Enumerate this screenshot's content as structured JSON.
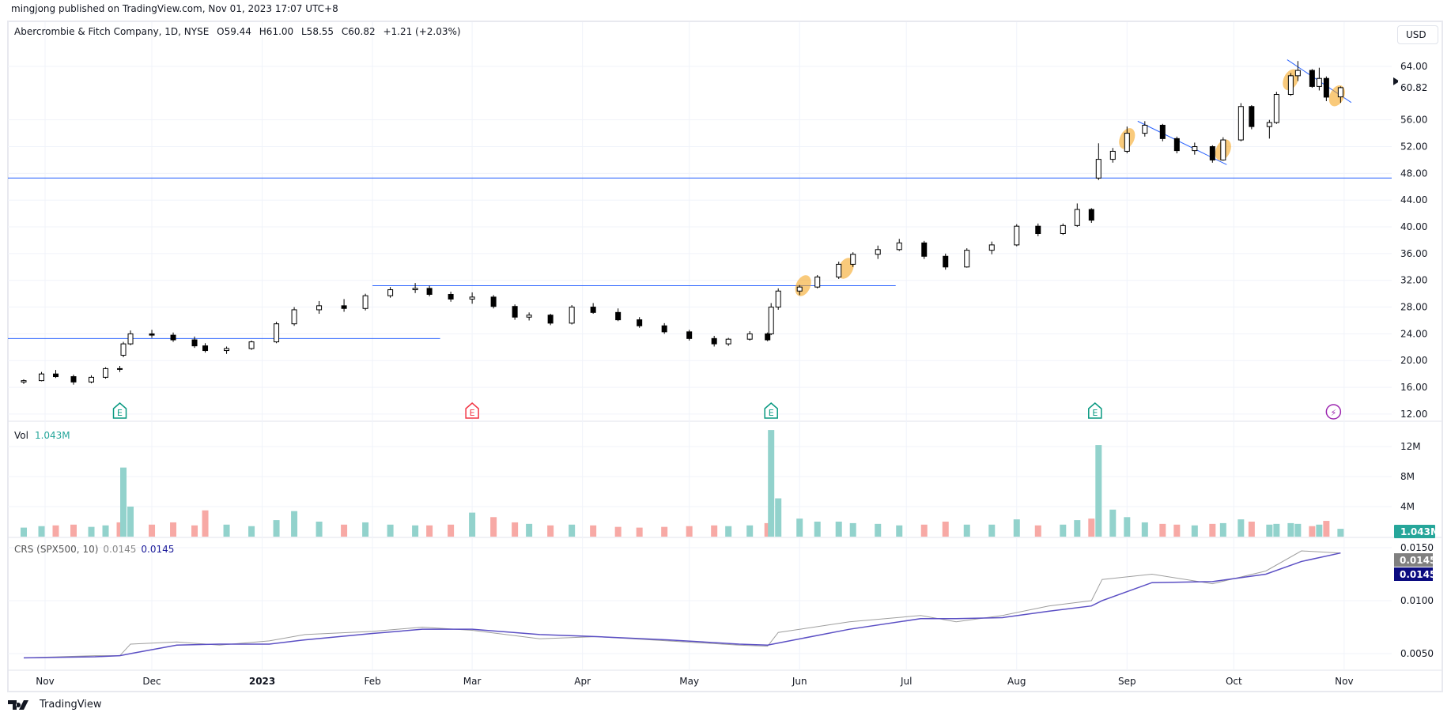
{
  "header": {
    "published": "mingjong published on TradingView.com, Nov 01, 2023 17:07 UTC+8"
  },
  "legend": {
    "symbol": "Abercrombie & Fitch Company, 1D, NYSE",
    "open": "O59.44",
    "high": "H61.00",
    "low": "L58.55",
    "close": "C60.82",
    "change": "+1.21 (+2.03%)"
  },
  "currency_button": "USD",
  "volume_legend": {
    "label": "Vol",
    "value": "1.043M"
  },
  "crs_legend": {
    "label": "CRS (SPX500, 10)",
    "value1": "0.0145",
    "value2": "0.0145"
  },
  "brand": "TradingView",
  "colors": {
    "up_volume": "#92d2cc",
    "down_volume": "#f7a9a5",
    "drawing": "#2962ff",
    "highlight": "#f5a623",
    "crs": "#9e9e9e",
    "crs_ma": "#5b4fc4",
    "last_volume_tag": "#26a69a",
    "crs_tag1": "#808080",
    "crs_tag2": "#0b0b80"
  },
  "chart_data": {
    "type": "candlestick",
    "title": "Abercrombie & Fitch Company, 1D, NYSE",
    "price_axis": {
      "ticks": [
        "12.00",
        "16.00",
        "20.00",
        "24.00",
        "28.00",
        "32.00",
        "36.00",
        "40.00",
        "44.00",
        "48.00",
        "52.00",
        "56.00",
        "64.00"
      ],
      "range": [
        12,
        66
      ],
      "last_price": "60.82"
    },
    "volume_axis": {
      "ticks": [
        "4M",
        "8M",
        "12M"
      ],
      "last_volume": "1.043M"
    },
    "crs_axis": {
      "ticks": [
        "0.0050",
        "0.0100",
        "0.0150"
      ],
      "last_values": [
        "0.0145",
        "0.0145"
      ]
    },
    "time_axis": [
      {
        "date": "2022-11-01",
        "label": "Nov"
      },
      {
        "date": "2022-12-01",
        "label": "Dec"
      },
      {
        "date": "2023-01-01",
        "label": "2023"
      },
      {
        "date": "2023-02-01",
        "label": "Feb"
      },
      {
        "date": "2023-03-01",
        "label": "Mar"
      },
      {
        "date": "2023-04-01",
        "label": "Apr"
      },
      {
        "date": "2023-05-01",
        "label": "May"
      },
      {
        "date": "2023-06-01",
        "label": "Jun"
      },
      {
        "date": "2023-07-01",
        "label": "Jul"
      },
      {
        "date": "2023-08-01",
        "label": "Aug"
      },
      {
        "date": "2023-09-01",
        "label": "Sep"
      },
      {
        "date": "2023-10-01",
        "label": "Oct"
      },
      {
        "date": "2023-11-01",
        "label": "Nov"
      }
    ],
    "candles_fields": [
      "date",
      "open",
      "high",
      "low",
      "close",
      "volume_M"
    ],
    "candles": [
      [
        "2022-10-26",
        16.8,
        17.2,
        16.5,
        17.0,
        1.2
      ],
      [
        "2022-10-31",
        17.0,
        18.3,
        16.9,
        18.0,
        1.4
      ],
      [
        "2022-11-04",
        18.0,
        18.6,
        17.4,
        17.6,
        1.5
      ],
      [
        "2022-11-09",
        17.6,
        17.9,
        16.4,
        16.8,
        1.6
      ],
      [
        "2022-11-14",
        16.8,
        17.8,
        16.6,
        17.5,
        1.3
      ],
      [
        "2022-11-18",
        17.5,
        19.0,
        17.3,
        18.8,
        1.5
      ],
      [
        "2022-11-22",
        18.8,
        19.2,
        18.3,
        18.7,
        1.9
      ],
      [
        "2022-11-23",
        20.8,
        22.8,
        20.5,
        22.5,
        9.2
      ],
      [
        "2022-11-25",
        22.5,
        24.5,
        22.3,
        24.0,
        4.0
      ],
      [
        "2022-12-01",
        24.0,
        24.6,
        23.4,
        23.8,
        1.6
      ],
      [
        "2022-12-07",
        23.8,
        24.2,
        22.8,
        23.1,
        1.9
      ],
      [
        "2022-12-13",
        23.1,
        23.6,
        21.9,
        22.2,
        1.5
      ],
      [
        "2022-12-16",
        22.2,
        22.6,
        21.2,
        21.5,
        3.5
      ],
      [
        "2022-12-22",
        21.5,
        22.1,
        21.0,
        21.8,
        1.6
      ],
      [
        "2022-12-29",
        21.8,
        23.0,
        21.6,
        22.8,
        1.4
      ],
      [
        "2023-01-05",
        22.8,
        25.8,
        22.6,
        25.5,
        2.2
      ],
      [
        "2023-01-10",
        25.5,
        28.0,
        25.2,
        27.6,
        3.4
      ],
      [
        "2023-01-17",
        27.6,
        28.9,
        27.0,
        28.2,
        2.0
      ],
      [
        "2023-01-24",
        28.2,
        29.2,
        27.3,
        27.8,
        1.6
      ],
      [
        "2023-01-30",
        27.8,
        30.0,
        27.5,
        29.7,
        1.9
      ],
      [
        "2023-02-06",
        29.7,
        31.0,
        29.4,
        30.6,
        1.6
      ],
      [
        "2023-02-13",
        30.6,
        31.6,
        30.1,
        30.8,
        1.5
      ],
      [
        "2023-02-17",
        30.8,
        31.2,
        29.6,
        29.9,
        1.5
      ],
      [
        "2023-02-23",
        29.9,
        30.3,
        28.8,
        29.2,
        1.6
      ],
      [
        "2023-03-01",
        29.2,
        30.2,
        28.5,
        29.5,
        3.2
      ],
      [
        "2023-03-07",
        29.5,
        29.8,
        27.8,
        28.1,
        2.6
      ],
      [
        "2023-03-13",
        28.1,
        28.4,
        26.1,
        26.5,
        1.9
      ],
      [
        "2023-03-17",
        26.5,
        27.2,
        26.0,
        26.8,
        1.7
      ],
      [
        "2023-03-23",
        26.8,
        27.0,
        25.3,
        25.6,
        1.5
      ],
      [
        "2023-03-29",
        25.6,
        28.3,
        25.4,
        28.0,
        1.6
      ],
      [
        "2023-04-04",
        28.0,
        28.6,
        27.0,
        27.2,
        1.5
      ],
      [
        "2023-04-11",
        27.2,
        27.8,
        25.9,
        26.1,
        1.3
      ],
      [
        "2023-04-17",
        26.1,
        26.5,
        24.9,
        25.2,
        1.2
      ],
      [
        "2023-04-24",
        25.2,
        25.6,
        24.0,
        24.3,
        1.3
      ],
      [
        "2023-05-01",
        24.3,
        24.6,
        23.0,
        23.3,
        1.4
      ],
      [
        "2023-05-08",
        23.3,
        23.7,
        22.1,
        22.5,
        1.5
      ],
      [
        "2023-05-12",
        22.5,
        23.4,
        22.2,
        23.2,
        1.4
      ],
      [
        "2023-05-18",
        23.2,
        24.4,
        23.0,
        24.0,
        1.5
      ],
      [
        "2023-05-23",
        24.0,
        24.2,
        22.9,
        23.1,
        1.8
      ],
      [
        "2023-05-24",
        24.0,
        28.6,
        23.8,
        28.0,
        14.2
      ],
      [
        "2023-05-26",
        28.0,
        30.8,
        27.6,
        30.4,
        5.1
      ],
      [
        "2023-06-01",
        30.4,
        31.3,
        29.8,
        31.0,
        2.4
      ],
      [
        "2023-06-06",
        31.0,
        32.8,
        30.8,
        32.5,
        2.0
      ],
      [
        "2023-06-12",
        32.5,
        34.8,
        32.2,
        34.4,
        2.0
      ],
      [
        "2023-06-16",
        34.4,
        36.2,
        34.0,
        35.9,
        1.8
      ],
      [
        "2023-06-23",
        35.9,
        37.2,
        35.2,
        36.6,
        1.7
      ],
      [
        "2023-06-29",
        36.6,
        38.2,
        36.4,
        37.6,
        1.5
      ],
      [
        "2023-07-06",
        37.6,
        37.9,
        35.2,
        35.6,
        1.6
      ],
      [
        "2023-07-12",
        35.6,
        36.0,
        33.6,
        34.0,
        2.0
      ],
      [
        "2023-07-18",
        34.0,
        36.8,
        33.9,
        36.5,
        1.6
      ],
      [
        "2023-07-25",
        36.5,
        37.8,
        35.9,
        37.3,
        1.6
      ],
      [
        "2023-08-01",
        37.3,
        40.4,
        37.1,
        40.1,
        2.3
      ],
      [
        "2023-08-07",
        40.1,
        40.5,
        38.6,
        39.0,
        1.5
      ],
      [
        "2023-08-14",
        39.0,
        40.5,
        38.8,
        40.2,
        1.6
      ],
      [
        "2023-08-18",
        40.2,
        43.5,
        40.0,
        42.6,
        2.2
      ],
      [
        "2023-08-22",
        42.6,
        42.8,
        40.6,
        41.0,
        2.4
      ],
      [
        "2023-08-24",
        47.3,
        52.5,
        47.0,
        50.1,
        12.2
      ],
      [
        "2023-08-28",
        50.1,
        51.8,
        49.6,
        51.3,
        3.6
      ],
      [
        "2023-09-01",
        51.3,
        55.0,
        51.0,
        54.0,
        2.6
      ],
      [
        "2023-09-06",
        54.0,
        55.8,
        53.5,
        55.2,
        1.9
      ],
      [
        "2023-09-11",
        55.2,
        55.4,
        52.8,
        53.2,
        1.7
      ],
      [
        "2023-09-15",
        53.2,
        53.5,
        51.0,
        51.4,
        1.6
      ],
      [
        "2023-09-20",
        51.4,
        52.6,
        50.8,
        52.0,
        1.5
      ],
      [
        "2023-09-25",
        52.0,
        52.2,
        49.6,
        50.0,
        1.7
      ],
      [
        "2023-09-28",
        50.0,
        53.4,
        49.9,
        53.0,
        1.8
      ],
      [
        "2023-10-03",
        53.0,
        58.5,
        52.8,
        58.0,
        2.3
      ],
      [
        "2023-10-06",
        58.0,
        58.2,
        54.6,
        55.0,
        2.0
      ],
      [
        "2023-10-11",
        55.0,
        56.0,
        53.2,
        55.6,
        1.6
      ],
      [
        "2023-10-13",
        55.6,
        60.2,
        55.4,
        59.8,
        1.7
      ],
      [
        "2023-10-17",
        59.8,
        63.0,
        59.6,
        62.6,
        1.8
      ],
      [
        "2023-10-19",
        62.6,
        64.8,
        61.8,
        63.4,
        1.7
      ],
      [
        "2023-10-23",
        63.4,
        63.6,
        60.8,
        61.0,
        1.4
      ],
      [
        "2023-10-25",
        61.0,
        63.8,
        60.4,
        62.2,
        1.6
      ],
      [
        "2023-10-27",
        62.2,
        62.5,
        58.8,
        59.4,
        2.1
      ],
      [
        "2023-10-31",
        59.44,
        61.0,
        58.55,
        60.82,
        1.043
      ]
    ],
    "crs_fields": [
      "date",
      "crs",
      "crs_ma"
    ],
    "crs": [
      [
        "2022-10-26",
        0.0046,
        0.0046
      ],
      [
        "2022-11-15",
        0.0048,
        0.0047
      ],
      [
        "2022-11-22",
        0.0048,
        0.0048
      ],
      [
        "2022-11-25",
        0.0059,
        0.005
      ],
      [
        "2022-12-08",
        0.0061,
        0.0058
      ],
      [
        "2022-12-20",
        0.0058,
        0.0059
      ],
      [
        "2023-01-03",
        0.0062,
        0.0059
      ],
      [
        "2023-01-13",
        0.0068,
        0.0063
      ],
      [
        "2023-02-01",
        0.0071,
        0.0069
      ],
      [
        "2023-02-15",
        0.0075,
        0.0073
      ],
      [
        "2023-03-01",
        0.0072,
        0.0073
      ],
      [
        "2023-03-20",
        0.0064,
        0.0068
      ],
      [
        "2023-04-05",
        0.0066,
        0.0066
      ],
      [
        "2023-04-25",
        0.0062,
        0.0063
      ],
      [
        "2023-05-15",
        0.0058,
        0.0059
      ],
      [
        "2023-05-23",
        0.0057,
        0.0058
      ],
      [
        "2023-05-26",
        0.007,
        0.006
      ],
      [
        "2023-06-15",
        0.008,
        0.0073
      ],
      [
        "2023-07-05",
        0.0086,
        0.0083
      ],
      [
        "2023-07-15",
        0.008,
        0.0083
      ],
      [
        "2023-07-28",
        0.0086,
        0.0084
      ],
      [
        "2023-08-10",
        0.0095,
        0.009
      ],
      [
        "2023-08-22",
        0.01,
        0.0095
      ],
      [
        "2023-08-25",
        0.012,
        0.01
      ],
      [
        "2023-09-08",
        0.0125,
        0.0117
      ],
      [
        "2023-09-25",
        0.0116,
        0.0118
      ],
      [
        "2023-10-10",
        0.0128,
        0.0125
      ],
      [
        "2023-10-20",
        0.0147,
        0.0137
      ],
      [
        "2023-10-31",
        0.0145,
        0.0145
      ]
    ],
    "drawings": {
      "horizontal_lines": [
        {
          "price": 23.3,
          "from": "2022-10-20",
          "to": "2023-02-20"
        },
        {
          "price": 31.2,
          "from": "2023-02-01",
          "to": "2023-06-28"
        },
        {
          "price": 47.3,
          "from": "2022-10-20",
          "to": "2023-11-25"
        }
      ],
      "trendlines": [
        {
          "from": [
            "2023-09-04",
            55.8
          ],
          "to": [
            "2023-09-29",
            49.3
          ]
        },
        {
          "from": [
            "2023-10-16",
            65.0
          ],
          "to": [
            "2023-11-03",
            58.6
          ]
        }
      ],
      "highlights": [
        {
          "date": "2023-06-02",
          "price": 31.2
        },
        {
          "date": "2023-06-14",
          "price": 33.8
        },
        {
          "date": "2023-09-01",
          "price": 53.2
        },
        {
          "date": "2023-09-28",
          "price": 51.5
        },
        {
          "date": "2023-10-17",
          "price": 62.0
        },
        {
          "date": "2023-10-30",
          "price": 59.6
        }
      ]
    },
    "events": [
      {
        "date": "2022-11-22",
        "type": "earnings",
        "label": "E",
        "color": "#089981"
      },
      {
        "date": "2023-03-01",
        "type": "earnings",
        "label": "E",
        "color": "#f23645"
      },
      {
        "date": "2023-05-24",
        "type": "earnings",
        "label": "E",
        "color": "#089981"
      },
      {
        "date": "2023-08-23",
        "type": "earnings",
        "label": "E",
        "color": "#089981"
      },
      {
        "date": "2023-10-29",
        "type": "dividend-split",
        "label": "⚡",
        "color": "#9c27b0"
      }
    ]
  }
}
